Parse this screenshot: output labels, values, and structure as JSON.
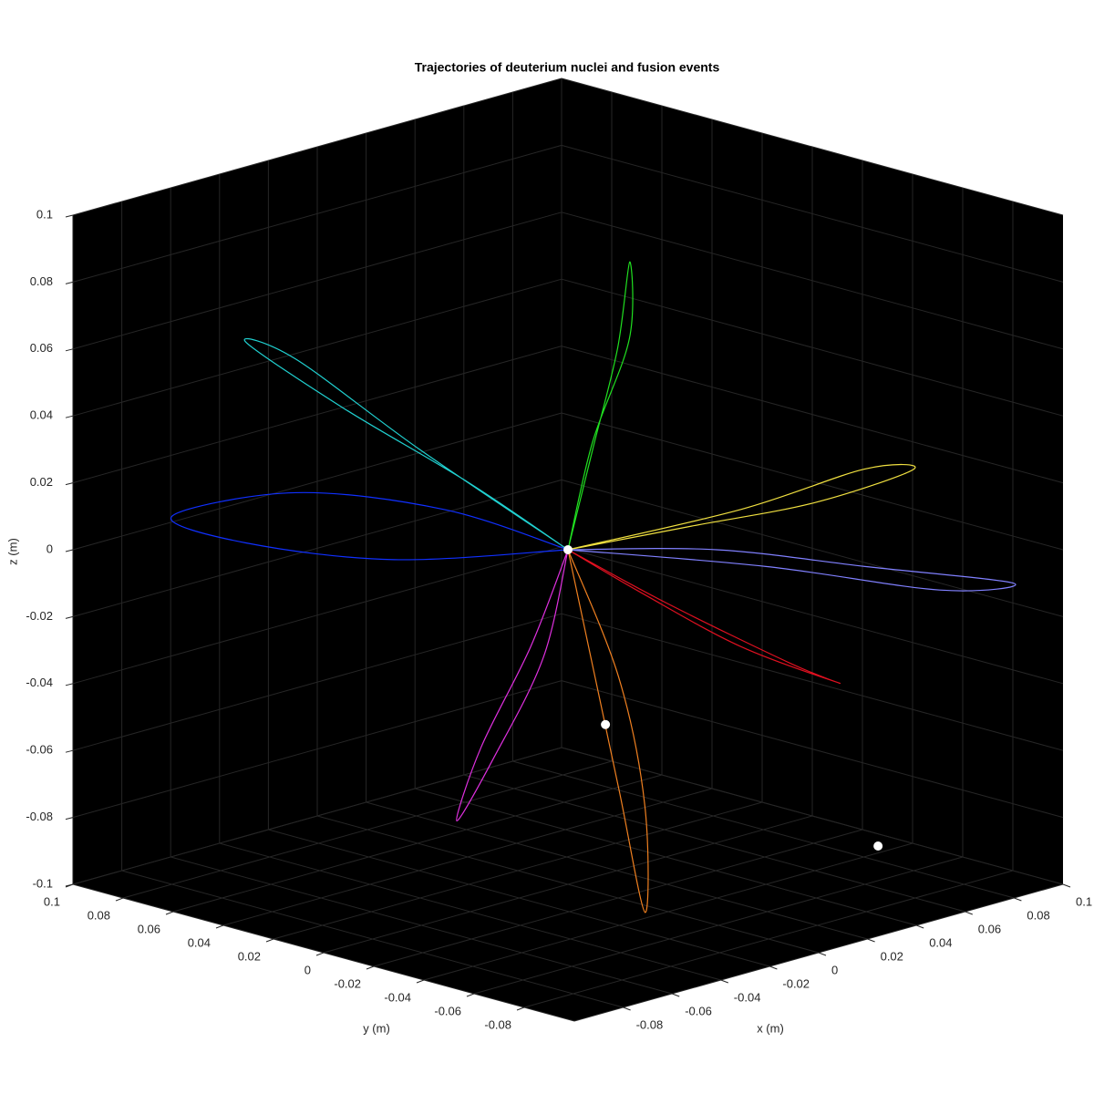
{
  "chart_data": {
    "type": "line3d",
    "title": "Trajectories of deuterium nuclei and fusion events",
    "x_label": "x (m)",
    "y_label": "y (m)",
    "z_label": "z (m)",
    "xlim": [
      -0.1,
      0.1
    ],
    "ylim": [
      -0.1,
      0.1
    ],
    "zlim": [
      -0.1,
      0.1
    ],
    "xticks": [
      -0.08,
      -0.06,
      -0.04,
      -0.02,
      0,
      0.02,
      0.04,
      0.06,
      0.08,
      0.1
    ],
    "yticks": [
      -0.08,
      -0.06,
      -0.04,
      -0.02,
      0,
      0.02,
      0.04,
      0.06,
      0.08,
      0.1
    ],
    "zticks": [
      -0.1,
      -0.08,
      -0.06,
      -0.04,
      -0.02,
      0,
      0.02,
      0.04,
      0.06,
      0.08,
      0.1
    ],
    "grid": true,
    "series": [
      {
        "color": "#1030ff",
        "x": [
          0,
          -0.02,
          -0.05,
          -0.08,
          -0.06,
          -0.03,
          0
        ],
        "y": [
          0,
          0.03,
          0.06,
          0.08,
          0.07,
          0.04,
          0
        ],
        "z": [
          0,
          0.01,
          0.015,
          0.01,
          0,
          -0.005,
          0
        ]
      },
      {
        "color": "#20e020",
        "x": [
          0,
          0.005,
          0.01,
          0.015,
          0.02,
          0.01,
          0
        ],
        "y": [
          0,
          -0.005,
          -0.01,
          -0.01,
          -0.005,
          0,
          0
        ],
        "z": [
          0,
          0.03,
          0.06,
          0.085,
          0.06,
          0.03,
          0
        ]
      },
      {
        "color": "#f0e040",
        "x": [
          0,
          0.03,
          0.06,
          0.08,
          0.07,
          0.04,
          0
        ],
        "y": [
          0,
          -0.02,
          -0.04,
          -0.06,
          -0.05,
          -0.03,
          0
        ],
        "z": [
          0,
          0.005,
          0.01,
          0.02,
          0.02,
          0.01,
          0
        ]
      },
      {
        "color": "#e030e0",
        "x": [
          0,
          -0.01,
          -0.02,
          -0.025,
          -0.015,
          -0.005,
          0
        ],
        "y": [
          0,
          0,
          0.01,
          0.02,
          0.02,
          0.01,
          0
        ],
        "z": [
          0,
          -0.03,
          -0.06,
          -0.08,
          -0.06,
          -0.03,
          0
        ]
      },
      {
        "color": "#20d0d0",
        "x": [
          0,
          -0.02,
          -0.04,
          -0.06,
          -0.05,
          -0.03,
          0
        ],
        "y": [
          0,
          0.02,
          0.05,
          0.07,
          0.06,
          0.03,
          0
        ],
        "z": [
          0,
          0.02,
          0.04,
          0.06,
          0.055,
          0.03,
          0
        ]
      },
      {
        "color": "#e01020",
        "x": [
          0,
          0.02,
          0.05,
          0.08,
          0.06,
          0.03,
          0
        ],
        "y": [
          0,
          -0.01,
          -0.02,
          -0.03,
          -0.03,
          -0.01,
          0
        ],
        "z": [
          0,
          -0.015,
          -0.035,
          -0.05,
          -0.04,
          -0.02,
          0
        ]
      },
      {
        "color": "#f08020",
        "x": [
          0,
          -0.01,
          -0.02,
          -0.03,
          -0.025,
          -0.01,
          0
        ],
        "y": [
          0,
          -0.02,
          -0.04,
          -0.06,
          -0.055,
          -0.03,
          0
        ],
        "z": [
          0,
          -0.03,
          -0.06,
          -0.09,
          -0.06,
          -0.03,
          0
        ]
      },
      {
        "color": "#8080ff",
        "x": [
          0,
          0.03,
          0.06,
          0.09,
          0.07,
          0.04,
          0
        ],
        "y": [
          0,
          -0.03,
          -0.06,
          -0.09,
          -0.08,
          -0.04,
          0
        ],
        "z": [
          0,
          0,
          -0.005,
          -0.01,
          -0.01,
          -0.005,
          0
        ]
      }
    ],
    "events": {
      "color": "#ffffff",
      "x": [
        0,
        0.002,
        0.091
      ],
      "y": [
        0,
        -0.013,
        -0.035
      ],
      "z": [
        0,
        -0.05,
        -0.1
      ]
    }
  }
}
